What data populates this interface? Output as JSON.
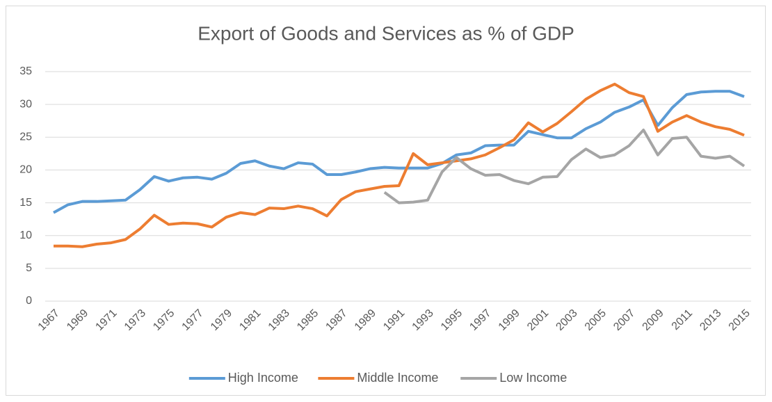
{
  "chart_data": {
    "type": "line",
    "title": "Export of Goods and Services as % of GDP",
    "x": [
      1967,
      1968,
      1969,
      1970,
      1971,
      1972,
      1973,
      1974,
      1975,
      1976,
      1977,
      1978,
      1979,
      1980,
      1981,
      1982,
      1983,
      1984,
      1985,
      1986,
      1987,
      1988,
      1989,
      1990,
      1991,
      1992,
      1993,
      1994,
      1995,
      1996,
      1997,
      1998,
      1999,
      2000,
      2001,
      2002,
      2003,
      2004,
      2005,
      2006,
      2007,
      2008,
      2009,
      2010,
      2011,
      2012,
      2013,
      2014,
      2015
    ],
    "xlim": [
      1967,
      2015
    ],
    "xticks": [
      1967,
      1969,
      1971,
      1973,
      1975,
      1977,
      1979,
      1981,
      1983,
      1985,
      1987,
      1989,
      1991,
      1993,
      1995,
      1997,
      1999,
      2001,
      2003,
      2005,
      2007,
      2009,
      2011,
      2013,
      2015
    ],
    "ylim": [
      0,
      35
    ],
    "yticks": [
      0,
      5,
      10,
      15,
      20,
      25,
      30,
      35
    ],
    "grid": true,
    "legend": "bottom",
    "series": [
      {
        "name": "High Income",
        "color": "#5b9bd5",
        "values": [
          13.5,
          14.7,
          15.2,
          15.2,
          15.3,
          15.4,
          17.0,
          19.0,
          18.3,
          18.8,
          18.9,
          18.6,
          19.5,
          21.0,
          21.4,
          20.6,
          20.2,
          21.1,
          20.9,
          19.3,
          19.3,
          19.7,
          20.2,
          20.4,
          20.3,
          20.3,
          20.3,
          21.0,
          22.3,
          22.6,
          23.7,
          23.8,
          23.8,
          25.9,
          25.4,
          24.9,
          24.9,
          26.3,
          27.3,
          28.8,
          29.6,
          30.7,
          26.8,
          29.5,
          31.5,
          31.9,
          32.0,
          32.0,
          31.2
        ]
      },
      {
        "name": "Middle Income",
        "color": "#ed7d31",
        "values": [
          8.4,
          8.4,
          8.3,
          8.7,
          8.9,
          9.4,
          11.0,
          13.1,
          11.7,
          11.9,
          11.8,
          11.3,
          12.8,
          13.5,
          13.2,
          14.2,
          14.1,
          14.5,
          14.1,
          13.0,
          15.5,
          16.7,
          17.1,
          17.5,
          17.6,
          22.5,
          20.8,
          21.1,
          21.4,
          21.7,
          22.3,
          23.4,
          24.6,
          27.2,
          25.8,
          27.1,
          28.9,
          30.8,
          32.1,
          33.1,
          31.8,
          31.2,
          25.9,
          27.3,
          28.3,
          27.3,
          26.6,
          26.2,
          25.3
        ]
      },
      {
        "name": "Low Income",
        "color": "#a5a5a5",
        "values": [
          null,
          null,
          null,
          null,
          null,
          null,
          null,
          null,
          null,
          null,
          null,
          null,
          null,
          null,
          null,
          null,
          null,
          null,
          null,
          null,
          null,
          null,
          null,
          16.6,
          15.0,
          15.1,
          15.4,
          19.7,
          21.9,
          20.2,
          19.2,
          19.3,
          18.4,
          17.9,
          18.9,
          19.0,
          21.6,
          23.2,
          21.9,
          22.3,
          23.7,
          26.1,
          22.3,
          24.8,
          25.0,
          22.1,
          21.8,
          22.1,
          20.6
        ]
      }
    ]
  }
}
